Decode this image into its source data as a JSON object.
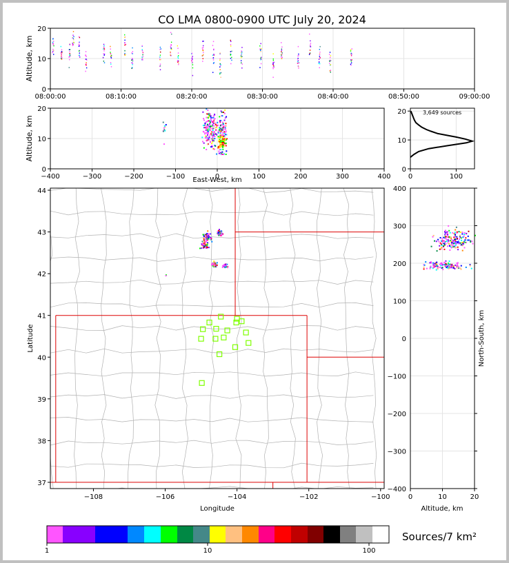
{
  "title": "CO LMA 0800-0900 UTC July 20, 2024",
  "chart_data": [
    {
      "type": "scatter",
      "panel": "altitude-vs-time",
      "xlabel": "",
      "ylabel": "Altitude, km",
      "x_ticks": [
        "08:00:00",
        "08:10:00",
        "08:20:00",
        "08:30:00",
        "08:40:00",
        "08:50:00",
        "09:00:00"
      ],
      "y_ticks": [
        "0",
        "10",
        "20"
      ],
      "xlim": [
        "08:00:00",
        "09:00:00"
      ],
      "ylim": [
        0,
        20
      ],
      "grid": true,
      "points": [
        {
          "x": "08:00:20",
          "y": 14
        },
        {
          "x": "08:01:30",
          "y": 11
        },
        {
          "x": "08:02:40",
          "y": 12
        },
        {
          "x": "08:03:10",
          "y": 16
        },
        {
          "x": "08:04:00",
          "y": 13
        },
        {
          "x": "08:05:00",
          "y": 10
        },
        {
          "x": "08:07:30",
          "y": 12
        },
        {
          "x": "08:08:30",
          "y": 11
        },
        {
          "x": "08:10:30",
          "y": 13
        },
        {
          "x": "08:11:30",
          "y": 9
        },
        {
          "x": "08:13:00",
          "y": 12
        },
        {
          "x": "08:15:30",
          "y": 11
        },
        {
          "x": "08:17:00",
          "y": 14
        },
        {
          "x": "08:18:00",
          "y": 10
        },
        {
          "x": "08:20:00",
          "y": 9
        },
        {
          "x": "08:21:30",
          "y": 13
        },
        {
          "x": "08:23:00",
          "y": 11
        },
        {
          "x": "08:24:00",
          "y": 8
        },
        {
          "x": "08:25:30",
          "y": 12
        },
        {
          "x": "08:27:00",
          "y": 10
        },
        {
          "x": "08:29:40",
          "y": 11
        },
        {
          "x": "08:31:30",
          "y": 9
        },
        {
          "x": "08:32:40",
          "y": 12
        },
        {
          "x": "08:35:00",
          "y": 10
        },
        {
          "x": "08:36:40",
          "y": 13
        },
        {
          "x": "08:38:00",
          "y": 11
        },
        {
          "x": "08:39:30",
          "y": 9
        },
        {
          "x": "08:42:30",
          "y": 11
        }
      ]
    },
    {
      "type": "scatter",
      "panel": "altitude-vs-east-west",
      "xlabel": "East-West, km",
      "ylabel": "Altitude, km",
      "x_ticks": [
        "−400",
        "−300",
        "−200",
        "−100",
        "0",
        "100",
        "200",
        "300",
        "400"
      ],
      "y_ticks": [
        "0",
        "10",
        "20"
      ],
      "xlim": [
        -400,
        400
      ],
      "ylim": [
        0,
        20
      ],
      "grid": true,
      "clusters": [
        {
          "x": -128,
          "y": 14,
          "spread_x": 3,
          "spread_y": 4
        },
        {
          "x": -22,
          "y": 13,
          "spread_x": 14,
          "spread_y": 5
        },
        {
          "x": 10,
          "y": 11,
          "spread_x": 8,
          "spread_y": 5
        }
      ]
    },
    {
      "type": "line",
      "panel": "altitude-histogram",
      "annotation": "3,649 sources",
      "x_ticks": [
        "0",
        "100"
      ],
      "y_ticks": [
        "0",
        "10",
        "20"
      ],
      "xlim": [
        0,
        140
      ],
      "ylim": [
        0,
        21
      ],
      "profile": [
        [
          0,
          4
        ],
        [
          8,
          5
        ],
        [
          18,
          6
        ],
        [
          40,
          7
        ],
        [
          80,
          8
        ],
        [
          122,
          9
        ],
        [
          135,
          9.6
        ],
        [
          120,
          10.3
        ],
        [
          100,
          11
        ],
        [
          80,
          11.6
        ],
        [
          60,
          12.2
        ],
        [
          45,
          13
        ],
        [
          35,
          13.6
        ],
        [
          25,
          14.4
        ],
        [
          18,
          15.2
        ],
        [
          12,
          16
        ],
        [
          9,
          16.8
        ],
        [
          7,
          17.6
        ],
        [
          5,
          18.4
        ],
        [
          3,
          19.2
        ],
        [
          1,
          20
        ]
      ]
    },
    {
      "type": "scatter",
      "panel": "map-plan-view",
      "xlabel": "Longitude",
      "ylabel": "Latitude",
      "x_ticks": [
        "−108",
        "−106",
        "−104",
        "−102",
        "−100"
      ],
      "y_ticks": [
        "37",
        "38",
        "39",
        "40",
        "41",
        "42",
        "43",
        "44"
      ],
      "xlim": [
        -109.2,
        -99.9
      ],
      "ylim": [
        36.85,
        44.05
      ],
      "lma_stations": [
        {
          "lon": -104.45,
          "lat": 40.97
        },
        {
          "lon": -104.0,
          "lat": 40.92
        },
        {
          "lon": -104.77,
          "lat": 40.83
        },
        {
          "lon": -104.02,
          "lat": 40.83
        },
        {
          "lon": -103.87,
          "lat": 40.86
        },
        {
          "lon": -104.95,
          "lat": 40.67
        },
        {
          "lon": -104.58,
          "lat": 40.68
        },
        {
          "lon": -104.27,
          "lat": 40.64
        },
        {
          "lon": -103.75,
          "lat": 40.59
        },
        {
          "lon": -104.37,
          "lat": 40.47
        },
        {
          "lon": -104.6,
          "lat": 40.44
        },
        {
          "lon": -105.0,
          "lat": 40.44
        },
        {
          "lon": -103.68,
          "lat": 40.34
        },
        {
          "lon": -104.05,
          "lat": 40.24
        },
        {
          "lon": -104.49,
          "lat": 40.07
        },
        {
          "lon": -104.98,
          "lat": 39.38
        }
      ],
      "clusters": [
        {
          "lon": -104.85,
          "lat": 42.9,
          "spread": 0.12
        },
        {
          "lon": -104.5,
          "lat": 43.0,
          "spread": 0.06
        },
        {
          "lon": -104.9,
          "lat": 42.7,
          "spread": 0.1
        },
        {
          "lon": -104.65,
          "lat": 42.24,
          "spread": 0.05
        },
        {
          "lon": -104.35,
          "lat": 42.2,
          "spread": 0.05
        },
        {
          "lon": -106.0,
          "lat": 41.97,
          "spread": 0.02
        }
      ]
    },
    {
      "type": "scatter",
      "panel": "north-south-vs-altitude",
      "xlabel": "Altitude, km",
      "ylabel": "North-South, km",
      "x_ticks": [
        "0",
        "10",
        "20"
      ],
      "y_ticks": [
        "−400",
        "−300",
        "−200",
        "−100",
        "0",
        "100",
        "200",
        "300",
        "400"
      ],
      "xlim": [
        0,
        20
      ],
      "ylim": [
        -400,
        400
      ],
      "clusters": [
        {
          "x": 13,
          "y": 265,
          "spread_x": 4,
          "spread_y": 22
        },
        {
          "x": 10,
          "y": 195,
          "spread_x": 5,
          "spread_y": 8
        }
      ]
    }
  ],
  "colorbar": {
    "label": "Sources/7 km²",
    "tick_labels": [
      "1",
      "10",
      "100"
    ],
    "colors": [
      "#ff55ff",
      "#8800ff",
      "#0000ff",
      "#0088ff",
      "#00ffff",
      "#00ff00",
      "#008844",
      "#448888",
      "#ffff00",
      "#ffc080",
      "#ff8800",
      "#ff0088",
      "#ff0000",
      "#c00000",
      "#800000",
      "#000000",
      "#808080",
      "#c0c0c0",
      "#ffffff"
    ]
  },
  "colors": {
    "state_border": "#dd0000",
    "county_border": "#b0b0b0",
    "station_marker": "#7fff00",
    "frame": "#c0c0c0"
  }
}
